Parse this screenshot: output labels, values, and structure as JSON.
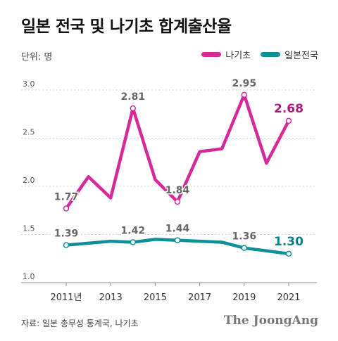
{
  "title": "일본 전국 및 나기초 합계출산율",
  "unit_label": "단위: 명",
  "source": "자료: 일본 총무성 통계국, 나기초",
  "brand": "The JoongAng",
  "colors": {
    "nagi": "#d6299a",
    "japan": "#0f8f99",
    "grid": "#cccccc",
    "axis": "#888888"
  },
  "chart_data": {
    "type": "line",
    "x": [
      2011,
      2012,
      2013,
      2014,
      2015,
      2016,
      2017,
      2018,
      2019,
      2020,
      2021
    ],
    "x_tick_values": [
      2011,
      2013,
      2015,
      2017,
      2019,
      2021
    ],
    "x_tick_labels": [
      "2011년",
      "2013",
      "2015",
      "2017",
      "2019",
      "2021"
    ],
    "y_ticks": [
      1.0,
      1.5,
      2.0,
      2.5,
      3.0
    ],
    "y_tick_labels": [
      "1.0",
      "1.5",
      "2.0",
      "2.5",
      "3.0"
    ],
    "ylim": [
      1.0,
      3.0
    ],
    "grid": true,
    "legend_position": "top-right",
    "series": [
      {
        "name": "나기초",
        "color": "#d6299a",
        "values": [
          1.77,
          2.1,
          1.88,
          2.81,
          2.07,
          1.84,
          2.36,
          2.39,
          2.95,
          2.24,
          2.68
        ],
        "labels": [
          {
            "index": 0,
            "text": "1.77"
          },
          {
            "index": 3,
            "text": "2.81"
          },
          {
            "index": 5,
            "text": "1.84"
          },
          {
            "index": 8,
            "text": "2.95"
          },
          {
            "index": 10,
            "text": "2.68"
          }
        ]
      },
      {
        "name": "일본전국",
        "color": "#0f8f99",
        "values": [
          1.39,
          1.41,
          1.43,
          1.42,
          1.45,
          1.44,
          1.43,
          1.42,
          1.36,
          1.33,
          1.3
        ],
        "labels": [
          {
            "index": 0,
            "text": "1.39"
          },
          {
            "index": 3,
            "text": "1.42"
          },
          {
            "index": 5,
            "text": "1.44"
          },
          {
            "index": 8,
            "text": "1.36"
          },
          {
            "index": 10,
            "text": "1.30"
          }
        ]
      }
    ]
  }
}
